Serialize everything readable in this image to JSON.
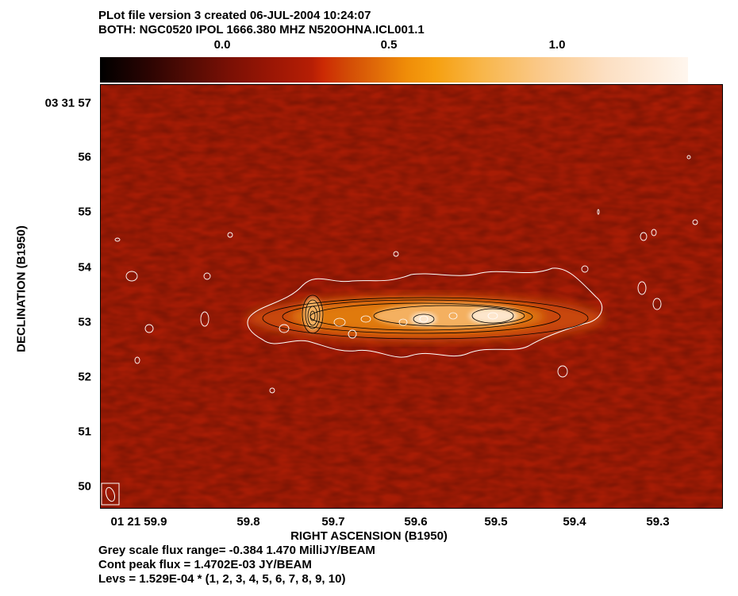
{
  "header": {
    "line1": "PLot file version 3  created 06-JUL-2004 10:24:07",
    "line2": "BOTH: NGC0520  IPOL  1666.380 MHZ  N520OHNA.ICL001.1"
  },
  "colorbar": {
    "ticks": [
      "0.0",
      "0.5",
      "1.0"
    ],
    "colors": [
      "#000000",
      "#8a1405",
      "#cc2a04",
      "#ef8c08",
      "#fac98a",
      "#fff6ee"
    ]
  },
  "axes": {
    "x_title": "RIGHT ASCENSION (B1950)",
    "y_title": "DECLINATION (B1950)",
    "x_ticks": [
      "01 21 59.9",
      "59.8",
      "59.7",
      "59.6",
      "59.5",
      "59.4",
      "59.3"
    ],
    "y_ticks": [
      "03 31 57",
      "56",
      "55",
      "54",
      "53",
      "52",
      "51",
      "50"
    ]
  },
  "image": {
    "background_color": "#a81c05",
    "emission_colors": [
      "#c8460a",
      "#e07a10",
      "#f4b060",
      "#fde6cc"
    ],
    "contour_color": "#000000",
    "outer_contour_color": "#ffffff"
  },
  "footer": {
    "line1": "Grey scale flux range= -0.384 1.470 MilliJY/BEAM",
    "line2": "Cont peak flux =  1.4702E-03 JY/BEAM",
    "line3": "Levs = 1.529E-04 * (1, 2, 3, 4, 5, 6, 7, 8, 9, 10)"
  }
}
